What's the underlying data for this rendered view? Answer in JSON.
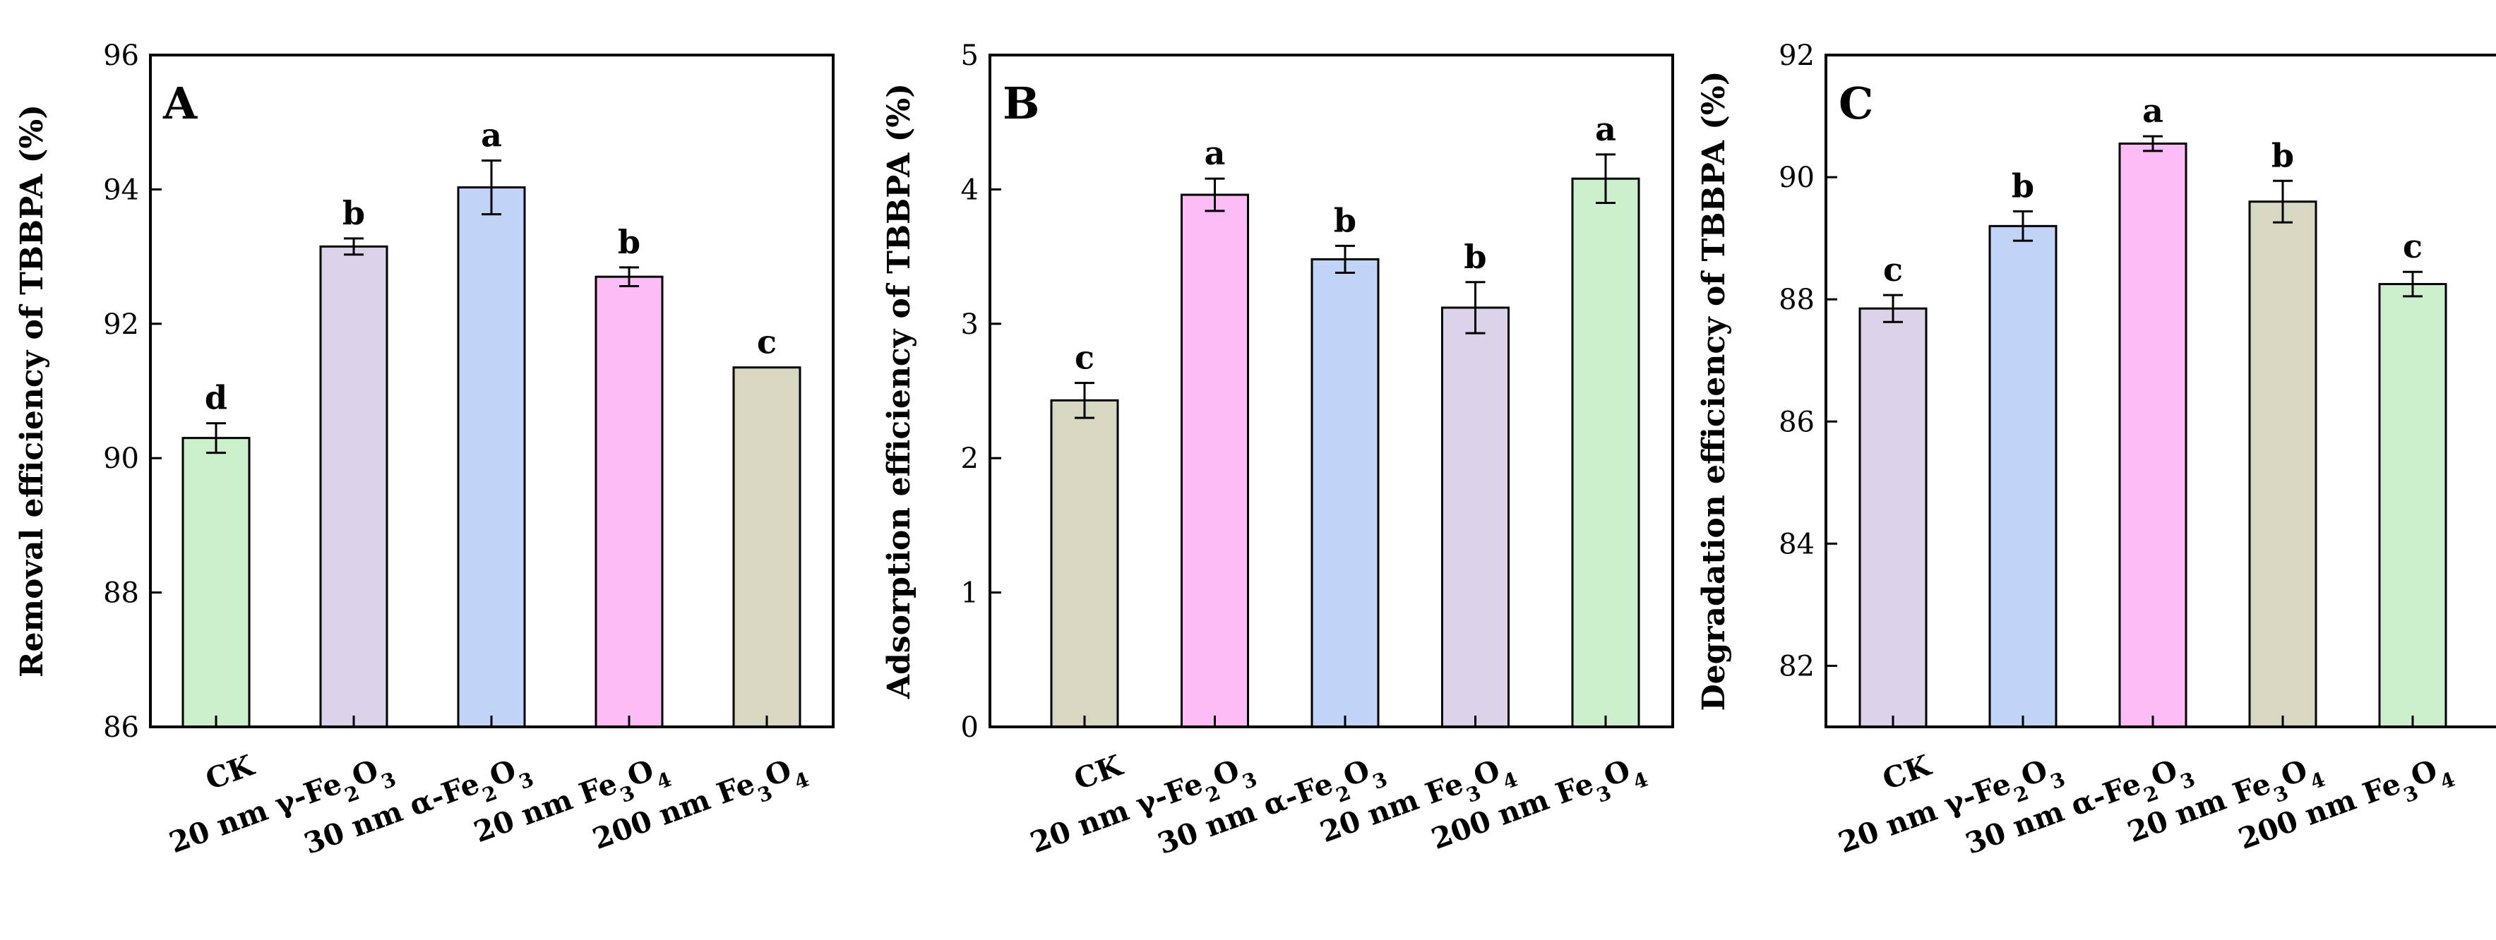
{
  "chart_data": [
    {
      "type": "bar",
      "panel": "A",
      "ylabel": "Removal efficiency of TBBPA (%)",
      "ylim": [
        86,
        96
      ],
      "yticks": [
        86,
        88,
        90,
        92,
        94,
        96
      ],
      "categories": [
        {
          "pre": "CK",
          "sub": "",
          "mid": "",
          "sub2": ""
        },
        {
          "pre": "20 nm γ-Fe",
          "sub": "2",
          "mid": "O",
          "sub2": "3"
        },
        {
          "pre": "30 nm α-Fe",
          "sub": "2",
          "mid": "O",
          "sub2": "3"
        },
        {
          "pre": "20 nm Fe",
          "sub": "3",
          "mid": "O",
          "sub2": "4"
        },
        {
          "pre": "200 nm Fe",
          "sub": "3",
          "mid": "O",
          "sub2": "4"
        }
      ],
      "values": [
        90.3,
        93.15,
        94.03,
        92.7,
        91.35
      ],
      "errors": [
        0.22,
        0.12,
        0.4,
        0.14,
        0
      ],
      "significance": [
        "d",
        "b",
        "a",
        "b",
        "c"
      ],
      "colors": [
        "#ccf0cc",
        "#dcd2ea",
        "#c0d4f8",
        "#fcbcf6",
        "#d8d8c2"
      ]
    },
    {
      "type": "bar",
      "panel": "B",
      "ylabel": "Adsorption efficiency of TBBPA (%)",
      "ylim": [
        0,
        5
      ],
      "yticks": [
        0,
        1,
        2,
        3,
        4,
        5
      ],
      "categories": [
        {
          "pre": "CK",
          "sub": "",
          "mid": "",
          "sub2": ""
        },
        {
          "pre": "20 nm γ-Fe",
          "sub": "2",
          "mid": "O",
          "sub2": "3"
        },
        {
          "pre": "30 nm α-Fe",
          "sub": "2",
          "mid": "O",
          "sub2": "3"
        },
        {
          "pre": "20 nm Fe",
          "sub": "3",
          "mid": "O",
          "sub2": "4"
        },
        {
          "pre": "200 nm Fe",
          "sub": "3",
          "mid": "O",
          "sub2": "4"
        }
      ],
      "values": [
        2.43,
        3.96,
        3.48,
        3.12,
        4.08
      ],
      "errors": [
        0.13,
        0.12,
        0.1,
        0.19,
        0.18
      ],
      "significance": [
        "c",
        "a",
        "b",
        "b",
        "a"
      ],
      "colors": [
        "#d8d8c2",
        "#fcbcf6",
        "#c0d4f8",
        "#dcd2ea",
        "#ccf0cc"
      ]
    },
    {
      "type": "bar",
      "panel": "C",
      "ylabel": "Degradation efficiency of TBBPA (%)",
      "ylim": [
        81,
        92
      ],
      "yticks": [
        82,
        84,
        86,
        88,
        90,
        92
      ],
      "categories": [
        {
          "pre": "CK",
          "sub": "",
          "mid": "",
          "sub2": ""
        },
        {
          "pre": "20 nm γ-Fe",
          "sub": "2",
          "mid": "O",
          "sub2": "3"
        },
        {
          "pre": "30 nm α-Fe",
          "sub": "2",
          "mid": "O",
          "sub2": "3"
        },
        {
          "pre": "20 nm Fe",
          "sub": "3",
          "mid": "O",
          "sub2": "4"
        },
        {
          "pre": "200 nm Fe",
          "sub": "3",
          "mid": "O",
          "sub2": "4"
        }
      ],
      "values": [
        87.85,
        89.2,
        90.55,
        89.6,
        88.25
      ],
      "errors": [
        0.22,
        0.24,
        0.12,
        0.34,
        0.2
      ],
      "significance": [
        "c",
        "b",
        "a",
        "b",
        "c"
      ],
      "colors": [
        "#dcd2ea",
        "#c0d4f8",
        "#fcbcf6",
        "#d8d8c2",
        "#ccf0cc"
      ]
    }
  ]
}
